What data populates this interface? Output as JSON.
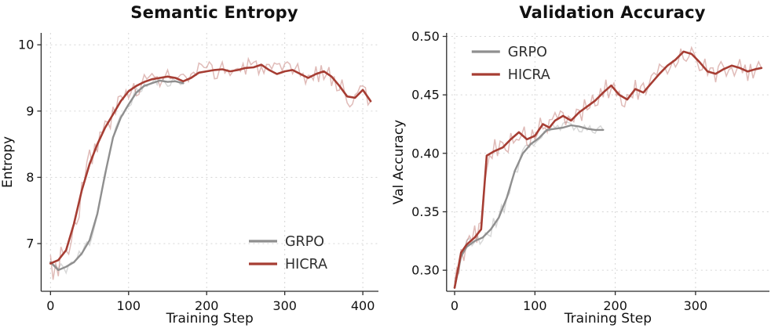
{
  "page": {
    "background": "#ffffff"
  },
  "chart_data": [
    {
      "type": "line",
      "title": "Semantic Entropy",
      "xlabel": "Training Step",
      "ylabel": "Entropy",
      "xlim": [
        -12,
        420
      ],
      "ylim": [
        6.28,
        10.18
      ],
      "xticks": [
        0,
        100,
        200,
        300,
        400
      ],
      "yticks": [
        7,
        8,
        9,
        10
      ],
      "ytick_decimals": 0,
      "grid": true,
      "grid_color": "#d6d6d6",
      "legend": {
        "position": "lower-right",
        "entries": [
          "GRPO",
          "HICRA"
        ]
      },
      "series": [
        {
          "name": "GRPO",
          "color": "#8f8f8f",
          "line_width": 2.4,
          "noise_amp": 0.07,
          "noise_boost": 1.6,
          "noise_boost_until": 60,
          "raw_alpha": 0.35,
          "seed": 11,
          "points": [
            [
              0,
              6.72
            ],
            [
              10,
              6.6
            ],
            [
              20,
              6.65
            ],
            [
              30,
              6.72
            ],
            [
              40,
              6.85
            ],
            [
              50,
              7.05
            ],
            [
              60,
              7.45
            ],
            [
              70,
              8.05
            ],
            [
              80,
              8.6
            ],
            [
              90,
              8.9
            ],
            [
              100,
              9.1
            ],
            [
              110,
              9.28
            ],
            [
              120,
              9.38
            ],
            [
              130,
              9.42
            ],
            [
              140,
              9.46
            ],
            [
              150,
              9.44
            ],
            [
              160,
              9.45
            ],
            [
              170,
              9.42
            ]
          ]
        },
        {
          "name": "HICRA",
          "color": "#a63d33",
          "line_width": 2.6,
          "noise_amp": 0.15,
          "noise_boost": 1.9,
          "noise_boost_until": 70,
          "raw_alpha": 0.35,
          "seed": 3,
          "points": [
            [
              0,
              6.7
            ],
            [
              10,
              6.75
            ],
            [
              20,
              6.9
            ],
            [
              30,
              7.3
            ],
            [
              40,
              7.8
            ],
            [
              50,
              8.2
            ],
            [
              60,
              8.5
            ],
            [
              70,
              8.75
            ],
            [
              80,
              8.95
            ],
            [
              90,
              9.15
            ],
            [
              100,
              9.3
            ],
            [
              110,
              9.38
            ],
            [
              120,
              9.44
            ],
            [
              130,
              9.48
            ],
            [
              140,
              9.5
            ],
            [
              150,
              9.52
            ],
            [
              160,
              9.5
            ],
            [
              170,
              9.45
            ],
            [
              180,
              9.5
            ],
            [
              190,
              9.58
            ],
            [
              200,
              9.6
            ],
            [
              210,
              9.62
            ],
            [
              220,
              9.63
            ],
            [
              230,
              9.6
            ],
            [
              240,
              9.62
            ],
            [
              250,
              9.65
            ],
            [
              260,
              9.66
            ],
            [
              270,
              9.7
            ],
            [
              280,
              9.62
            ],
            [
              290,
              9.56
            ],
            [
              300,
              9.6
            ],
            [
              310,
              9.62
            ],
            [
              320,
              9.56
            ],
            [
              330,
              9.5
            ],
            [
              340,
              9.56
            ],
            [
              350,
              9.6
            ],
            [
              360,
              9.52
            ],
            [
              370,
              9.38
            ],
            [
              380,
              9.22
            ],
            [
              390,
              9.2
            ],
            [
              400,
              9.32
            ],
            [
              410,
              9.15
            ]
          ]
        }
      ]
    },
    {
      "type": "line",
      "title": "Validation Accuracy",
      "xlabel": "Training Step",
      "ylabel": "Val Accuracy",
      "xlim": [
        -10,
        392
      ],
      "ylim": [
        0.282,
        0.503
      ],
      "xticks": [
        0,
        100,
        200,
        300
      ],
      "yticks": [
        0.3,
        0.35,
        0.4,
        0.45,
        0.5
      ],
      "ytick_decimals": 2,
      "grid": true,
      "grid_color": "#d6d6d6",
      "legend": {
        "position": "top-left",
        "entries": [
          "GRPO",
          "HICRA"
        ]
      },
      "series": [
        {
          "name": "GRPO",
          "color": "#8f8f8f",
          "line_width": 2.4,
          "noise_amp": 0.005,
          "noise_boost": 1.5,
          "noise_boost_until": 80,
          "raw_alpha": 0.35,
          "seed": 21,
          "points": [
            [
              0,
              0.285
            ],
            [
              8,
              0.312
            ],
            [
              15,
              0.32
            ],
            [
              25,
              0.325
            ],
            [
              35,
              0.328
            ],
            [
              45,
              0.335
            ],
            [
              55,
              0.345
            ],
            [
              65,
              0.362
            ],
            [
              75,
              0.385
            ],
            [
              85,
              0.4
            ],
            [
              95,
              0.408
            ],
            [
              105,
              0.413
            ],
            [
              115,
              0.42
            ],
            [
              125,
              0.421
            ],
            [
              135,
              0.422
            ],
            [
              145,
              0.424
            ],
            [
              155,
              0.423
            ],
            [
              165,
              0.421
            ],
            [
              175,
              0.42
            ],
            [
              185,
              0.42
            ]
          ]
        },
        {
          "name": "HICRA",
          "color": "#a63d33",
          "line_width": 2.6,
          "noise_amp": 0.009,
          "noise_boost": 1.4,
          "noise_boost_until": 60,
          "raw_alpha": 0.35,
          "seed": 5,
          "points": [
            [
              0,
              0.285
            ],
            [
              8,
              0.315
            ],
            [
              15,
              0.322
            ],
            [
              25,
              0.328
            ],
            [
              33,
              0.335
            ],
            [
              40,
              0.398
            ],
            [
              50,
              0.402
            ],
            [
              60,
              0.405
            ],
            [
              70,
              0.412
            ],
            [
              80,
              0.418
            ],
            [
              90,
              0.412
            ],
            [
              100,
              0.415
            ],
            [
              110,
              0.425
            ],
            [
              118,
              0.422
            ],
            [
              125,
              0.428
            ],
            [
              135,
              0.432
            ],
            [
              145,
              0.428
            ],
            [
              155,
              0.435
            ],
            [
              165,
              0.44
            ],
            [
              175,
              0.445
            ],
            [
              185,
              0.452
            ],
            [
              195,
              0.458
            ],
            [
              205,
              0.45
            ],
            [
              215,
              0.446
            ],
            [
              225,
              0.455
            ],
            [
              235,
              0.452
            ],
            [
              245,
              0.46
            ],
            [
              255,
              0.468
            ],
            [
              265,
              0.475
            ],
            [
              275,
              0.48
            ],
            [
              285,
              0.487
            ],
            [
              295,
              0.485
            ],
            [
              305,
              0.478
            ],
            [
              315,
              0.47
            ],
            [
              325,
              0.468
            ],
            [
              335,
              0.472
            ],
            [
              345,
              0.475
            ],
            [
              355,
              0.473
            ],
            [
              365,
              0.47
            ],
            [
              375,
              0.472
            ],
            [
              382,
              0.473
            ]
          ]
        }
      ]
    }
  ]
}
